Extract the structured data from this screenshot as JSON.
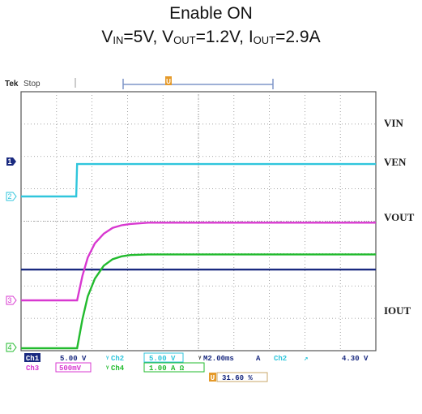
{
  "title": {
    "line1": "Enable ON",
    "vin": "V",
    "vin_sub": "IN",
    "vin_val": "=5V, ",
    "vout": "V",
    "vout_sub": "OUT",
    "vout_val": "=1.2V, ",
    "iout": "I",
    "iout_sub": "OUT",
    "iout_val": "=2.9A"
  },
  "scope": {
    "brand": "Tek",
    "state": "Stop",
    "trigger_marker": "U",
    "readouts": {
      "ch1_label": "Ch1",
      "ch1_scale": "5.00 V",
      "ch2_label": "Ch2",
      "ch2_scale": "5.00 V",
      "timebase": "M2.00ms",
      "trig_mode": "A",
      "trig_source": "Ch2",
      "trig_slope": "↗",
      "trig_level": "4.30 V",
      "ch3_label": "Ch3",
      "ch3_scale": "500mV",
      "ch4_label": "Ch4",
      "ch4_scale": "1.00 A Ω",
      "trig_position": "31.60 %"
    },
    "ground_markers": [
      "1",
      "2",
      "3",
      "4"
    ],
    "colors": {
      "ch1": "#1a2a80",
      "ch2": "#30c6dc",
      "ch3": "#d838d0",
      "ch4": "#22bb2e",
      "grid": "#8a8a8a",
      "screen": "#ffffff"
    }
  },
  "chart_data": {
    "type": "line",
    "xlabel": "",
    "ylabel": "",
    "xlim": [
      -3.16,
      16.84
    ],
    "x_unit": "ms",
    "timebase_ms_per_div": 2.0,
    "trigger_time_ms": 0,
    "series": [
      {
        "name": "VIN",
        "channel": 1,
        "unit": "V",
        "scale_per_div": 5.0,
        "x": [
          -3.16,
          16.84
        ],
        "y": [
          5.0,
          5.0
        ]
      },
      {
        "name": "VEN",
        "channel": 2,
        "unit": "V",
        "scale_per_div": 5.0,
        "x": [
          -3.16,
          -0.05,
          0.0,
          16.84
        ],
        "y": [
          0.0,
          0.0,
          5.0,
          5.0
        ]
      },
      {
        "name": "VOUT",
        "channel": 3,
        "unit": "V",
        "scale_per_div": 0.5,
        "x": [
          -3.16,
          0.0,
          0.3,
          0.6,
          1.0,
          1.5,
          2.0,
          2.5,
          3.0,
          4.0,
          5.0,
          16.84
        ],
        "y": [
          0.0,
          0.0,
          0.38,
          0.66,
          0.88,
          1.03,
          1.12,
          1.16,
          1.18,
          1.2,
          1.2,
          1.2
        ]
      },
      {
        "name": "IOUT",
        "channel": 4,
        "unit": "A",
        "scale_per_div": 1.0,
        "x": [
          -3.16,
          0.0,
          0.3,
          0.6,
          1.0,
          1.5,
          2.0,
          2.5,
          3.0,
          4.0,
          5.0,
          16.84
        ],
        "y": [
          0.0,
          0.0,
          0.9,
          1.6,
          2.15,
          2.55,
          2.75,
          2.84,
          2.88,
          2.9,
          2.9,
          2.9
        ]
      }
    ]
  }
}
